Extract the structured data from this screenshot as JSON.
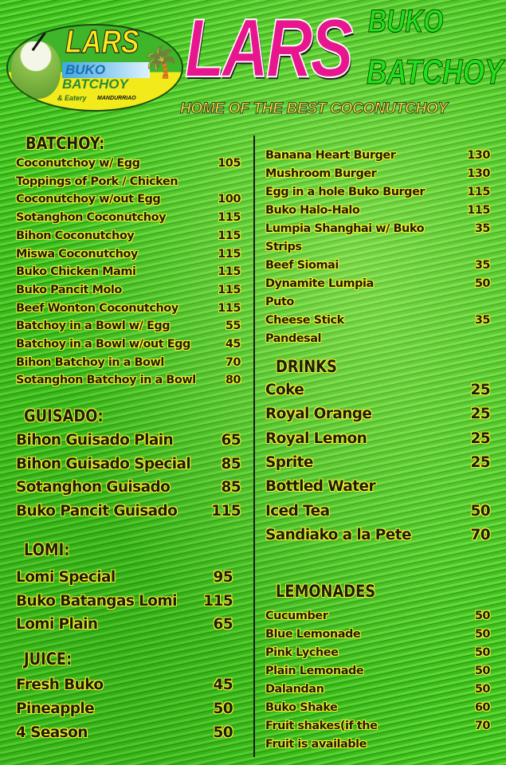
{
  "logo": {
    "line1": "LARS",
    "line2": "BUKO",
    "line3": "BATCHOY",
    "line4": "& Eatery",
    "line5": "MANDURRIAO"
  },
  "header": {
    "title": "LARS",
    "sub1": "BUKO",
    "sub2": "BATCHOY",
    "tagline": "HOME OF THE BEST COCONUTCHOY"
  },
  "sections": {
    "batchoy": {
      "title": "BATCHOY:",
      "items": [
        [
          "Coconutchoy w/ Egg",
          "105"
        ],
        [
          "Toppings of Pork / Chicken",
          ""
        ],
        [
          "Coconutchoy w/out Egg",
          "100"
        ],
        [
          "Sotanghon Coconutchoy",
          "115"
        ],
        [
          "Bihon Coconutchoy",
          "115"
        ],
        [
          "Miswa Coconutchoy",
          "115"
        ],
        [
          "Buko Chicken Mami",
          "115"
        ],
        [
          "Buko Pancit Molo",
          "115"
        ],
        [
          "Beef Wonton Coconutchoy",
          "115"
        ],
        [
          "Batchoy in a Bowl w/ Egg",
          "55"
        ],
        [
          "Batchoy in a Bowl w/out Egg",
          "45"
        ],
        [
          "Bihon Batchoy in a Bowl",
          "70"
        ],
        [
          "Sotanghon Batchoy in a Bowl",
          "80"
        ]
      ]
    },
    "guisado": {
      "title": "GUISADO:",
      "items": [
        [
          "Bihon Guisado Plain",
          "65"
        ],
        [
          "Bihon Guisado Special",
          "85"
        ],
        [
          "Sotanghon Guisado",
          "85"
        ],
        [
          "Buko Pancit Guisado",
          "115"
        ]
      ]
    },
    "lomi": {
      "title": "LOMI:",
      "items": [
        [
          "Lomi Special",
          "95"
        ],
        [
          "Buko Batangas Lomi",
          "115"
        ],
        [
          "Lomi Plain",
          "65"
        ]
      ]
    },
    "juice": {
      "title": "JUICE:",
      "items": [
        [
          "Fresh Buko",
          "45"
        ],
        [
          "Pineapple",
          "50"
        ],
        [
          "4 Season",
          "50"
        ]
      ]
    },
    "snacks": {
      "items": [
        [
          "Banana Heart Burger",
          "130"
        ],
        [
          "Mushroom Burger",
          "130"
        ],
        [
          "Egg in a hole Buko Burger",
          "115"
        ],
        [
          "Buko Halo-Halo",
          "115"
        ],
        [
          "Lumpia Shanghai w/ Buko",
          "35"
        ],
        [
          "Strips",
          ""
        ],
        [
          "Beef Siomai",
          "35"
        ],
        [
          "Dynamite Lumpia",
          "50"
        ],
        [
          "Puto",
          ""
        ],
        [
          "Cheese Stick",
          "35"
        ],
        [
          "Pandesal",
          ""
        ]
      ]
    },
    "drinks": {
      "title": "DRINKS",
      "items": [
        [
          "Coke",
          "25"
        ],
        [
          "Royal Orange",
          "25"
        ],
        [
          "Royal Lemon",
          "25"
        ],
        [
          "Sprite",
          "25"
        ],
        [
          "Bottled Water",
          ""
        ],
        [
          "Iced Tea",
          "50"
        ],
        [
          "Sandiako a la Pete",
          "70"
        ]
      ]
    },
    "lemonades": {
      "title": "LEMONADES",
      "items": [
        [
          "Cucumber",
          "50"
        ],
        [
          "Blue Lemonade",
          "50"
        ],
        [
          "Pink  Lychee",
          "50"
        ],
        [
          "Plain Lemonade",
          "50"
        ],
        [
          "Dalandan",
          "50"
        ],
        [
          "Buko Shake",
          "60"
        ],
        [
          "Fruit shakes(if the",
          "70"
        ],
        [
          "Fruit is available",
          ""
        ]
      ]
    }
  }
}
